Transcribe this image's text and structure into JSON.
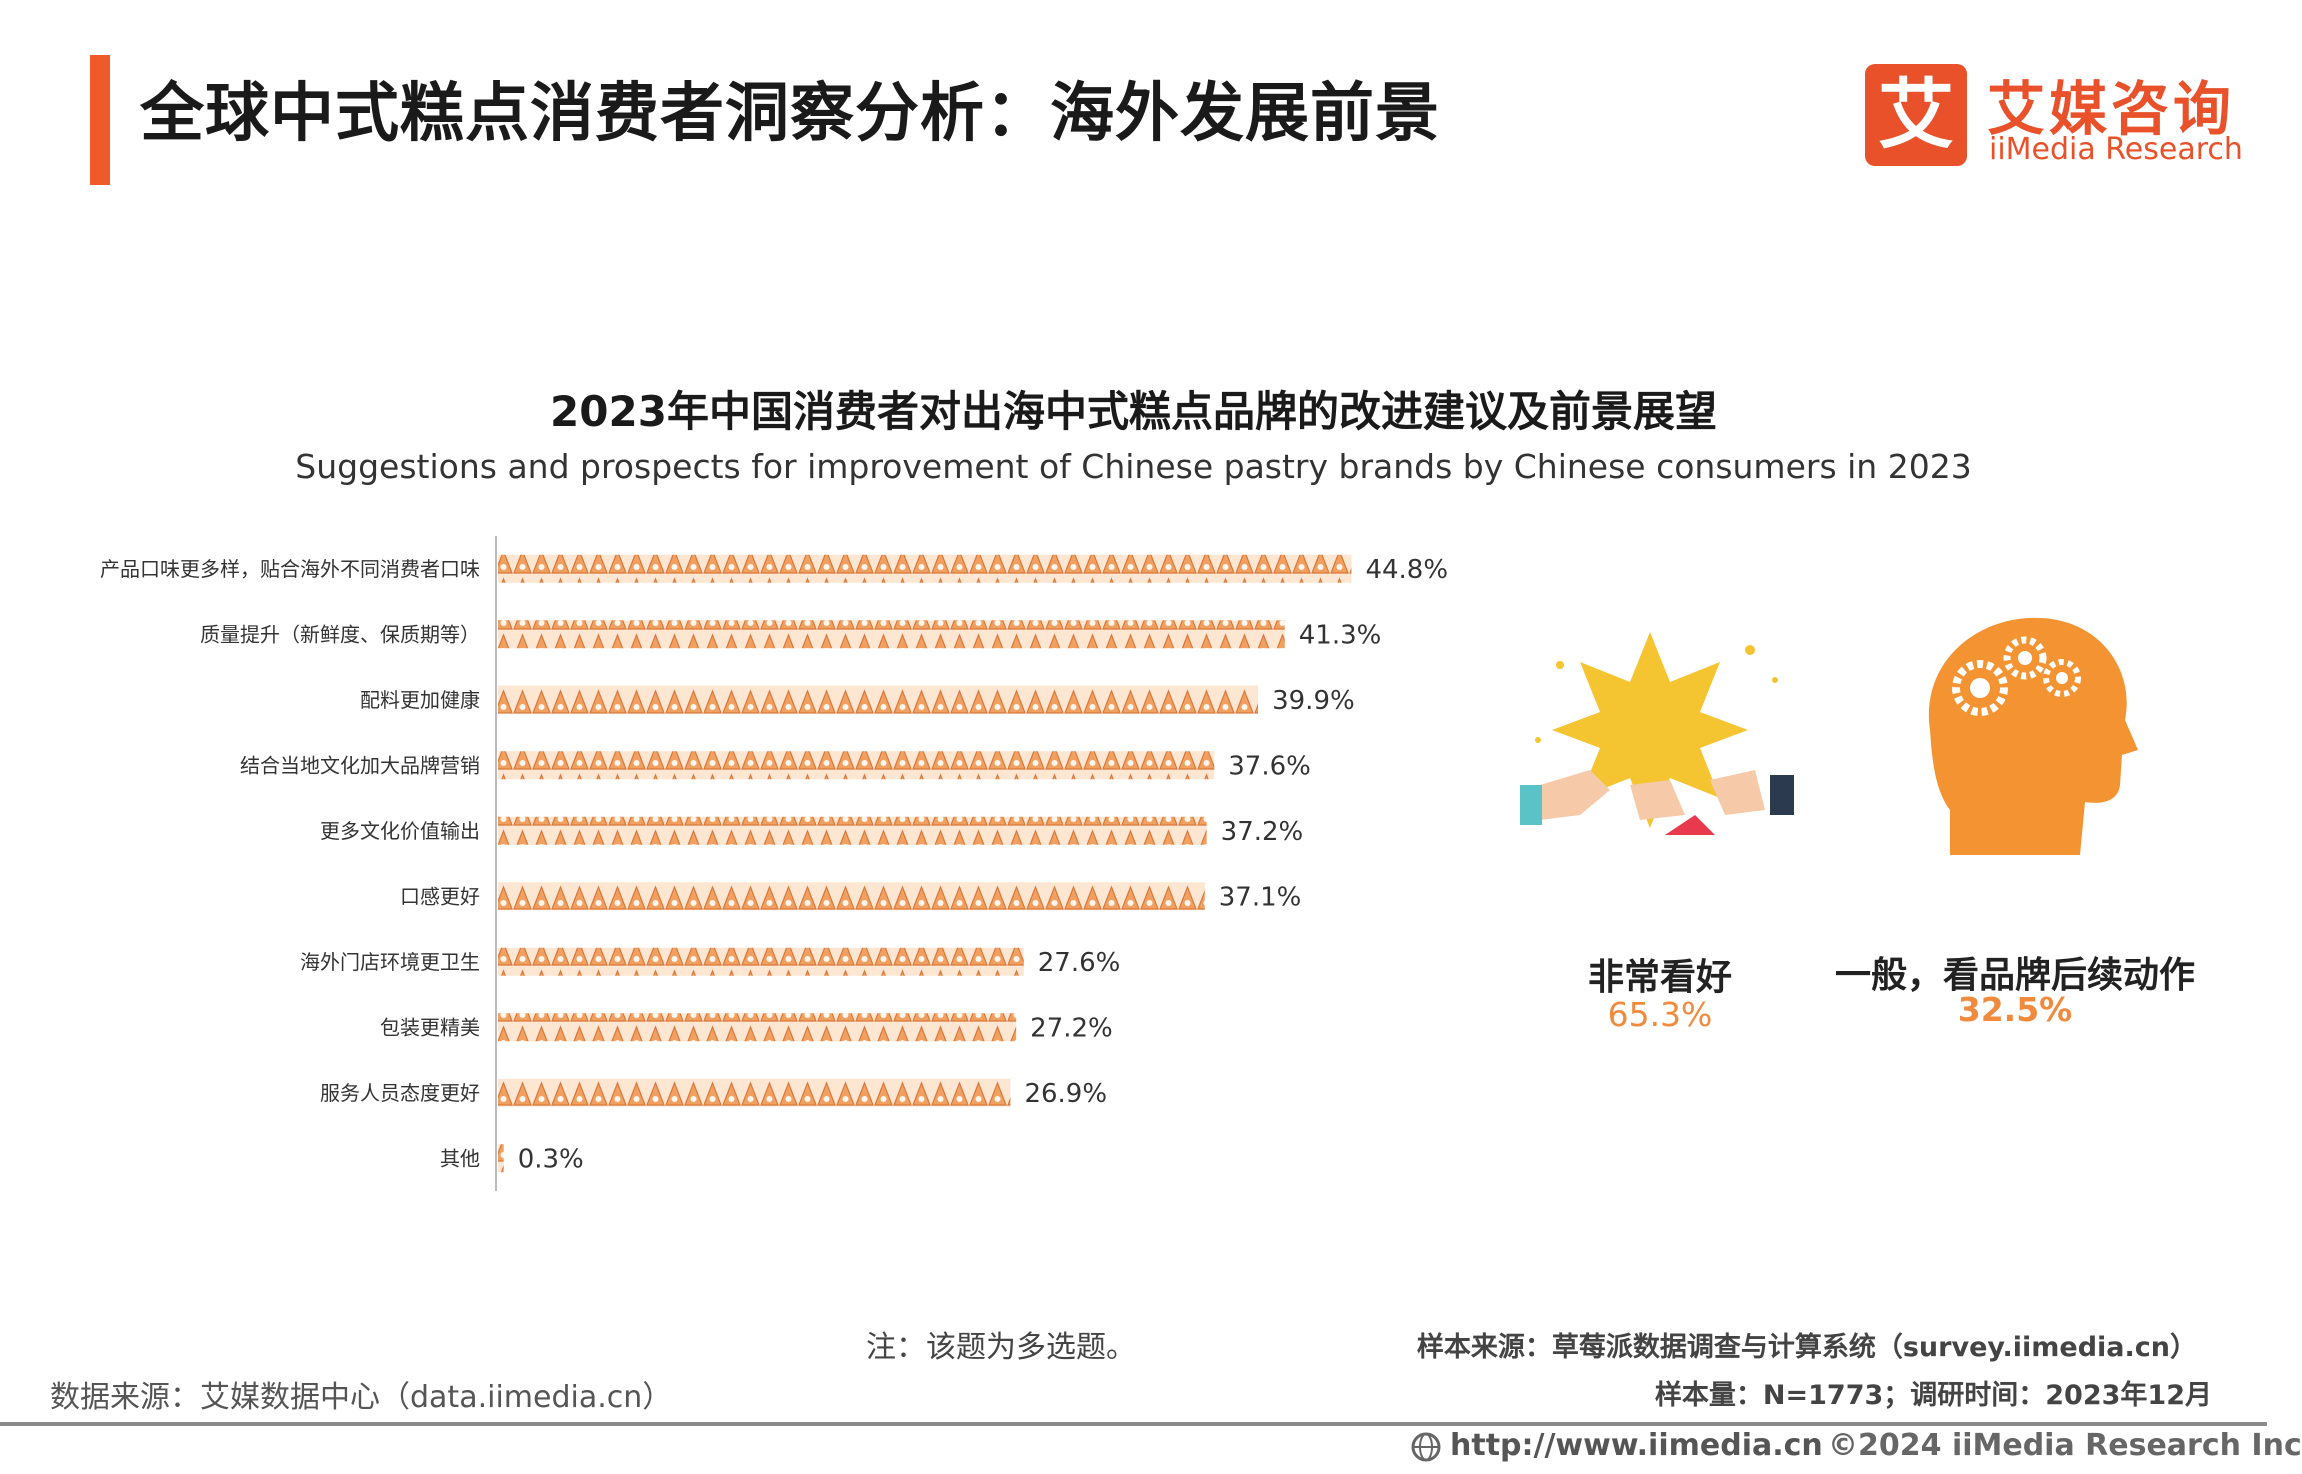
{
  "header": {
    "title": "全球中式糕点消费者洞察分析：海外发展前景",
    "logo_cn": "艾媒咨询",
    "logo_en": "iiMedia Research",
    "logo_mark": "艾",
    "accent_color": "#f05a28"
  },
  "chart_data": {
    "type": "bar",
    "orientation": "horizontal",
    "title": "2023年中国消费者对出海中式糕点品牌的改进建议及前景展望",
    "subtitle": "Suggestions and prospects for improvement of Chinese pastry brands by Chinese consumers in 2023",
    "unit": "%",
    "categories": [
      "产品口味更多样，贴合海外不同消费者口味",
      "质量提升（新鲜度、保质期等）",
      "配料更加健康",
      "结合当地文化加大品牌营销",
      "更多文化价值输出",
      "口感更好",
      "海外门店环境更卫生",
      "包装更精美",
      "服务人员态度更好",
      "其他"
    ],
    "values": [
      44.8,
      41.3,
      39.9,
      37.6,
      37.2,
      37.1,
      27.6,
      27.2,
      26.9,
      0.3
    ],
    "labels": [
      "44.8%",
      "41.3%",
      "39.9%",
      "37.6%",
      "37.2%",
      "37.1%",
      "27.6%",
      "27.2%",
      "26.9%",
      "0.3%"
    ],
    "bar_color": "#f0a060"
  },
  "prospects": [
    {
      "label": "非常看好",
      "value": 65.3,
      "value_text": "65.3%",
      "icon": "star-thumbs-up-icon"
    },
    {
      "label": "一般，看品牌后续动作",
      "value": 32.5,
      "value_text": "32.5%",
      "icon": "head-gears-icon"
    }
  ],
  "note": "注：该题为多选题。",
  "source_left": "数据来源：艾媒数据中心（data.iimedia.cn）",
  "sample_source": "样本来源：草莓派数据调查与计算系统（survey.iimedia.cn）",
  "sample_size": "样本量：N=1773；调研时间：2023年12月",
  "footer": {
    "url": "http://www.iimedia.cn",
    "copyright": "©2024  iiMedia Research  Inc"
  }
}
